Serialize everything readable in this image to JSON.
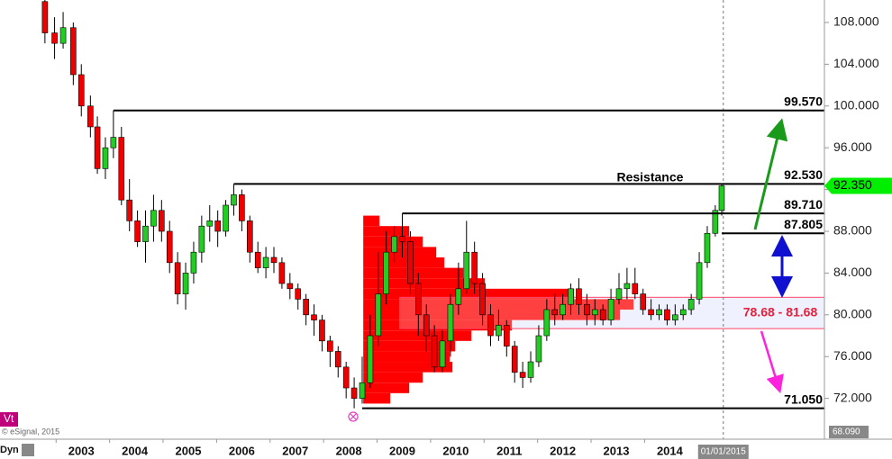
{
  "chart_data": {
    "type": "candlestick",
    "ylim": [
      68.09,
      110.15
    ],
    "yticks": [
      {
        "value": 72,
        "label": "72.000"
      },
      {
        "value": 76,
        "label": "76.000"
      },
      {
        "value": 80,
        "label": "80.000"
      },
      {
        "value": 84,
        "label": "84.000"
      },
      {
        "value": 88,
        "label": "88.000"
      },
      {
        "value": 92,
        "label": "92.000"
      },
      {
        "value": 96,
        "label": "96.000"
      },
      {
        "value": 100,
        "label": "100.000"
      },
      {
        "value": 104,
        "label": "104.000"
      },
      {
        "value": 108,
        "label": "108.000"
      }
    ],
    "xlim": [
      2001.48,
      2016.89
    ],
    "xticks": [
      2003,
      2004,
      2005,
      2006,
      2007,
      2008,
      2009,
      2010,
      2011,
      2012,
      2013,
      2014
    ],
    "up_color": "#22cc22",
    "down_color": "#ee0000",
    "x": [
      2002.32,
      2002.5,
      2002.66,
      2002.85,
      2003.0,
      2003.17,
      2003.3,
      2003.45,
      2003.6,
      2003.75,
      2003.9,
      2004.05,
      2004.2,
      2004.35,
      2004.5,
      2004.65,
      2004.8,
      2004.95,
      2005.1,
      2005.25,
      2005.4,
      2005.55,
      2005.7,
      2005.85,
      2006.0,
      2006.15,
      2006.3,
      2006.45,
      2006.6,
      2006.75,
      2006.9,
      2007.05,
      2007.2,
      2007.35,
      2007.5,
      2007.65,
      2007.8,
      2007.95,
      2008.1,
      2008.25,
      2008.4,
      2008.55,
      2008.7,
      2008.85,
      2009.0,
      2009.15,
      2009.3,
      2009.45,
      2009.6,
      2009.75,
      2009.9,
      2010.05,
      2010.2,
      2010.35,
      2010.5,
      2010.65,
      2010.8,
      2010.95,
      2011.1,
      2011.25,
      2011.4,
      2011.55,
      2011.7,
      2011.85,
      2012.0,
      2012.15,
      2012.3,
      2012.45,
      2012.6,
      2012.75,
      2012.9,
      2013.05,
      2013.2,
      2013.35,
      2013.5,
      2013.65,
      2013.8,
      2013.95,
      2014.1,
      2014.25,
      2014.4,
      2014.55,
      2014.7,
      2014.85,
      2014.97
    ],
    "open": [
      110,
      107,
      106,
      107.5,
      103,
      100,
      98,
      94,
      96,
      97,
      91,
      89,
      87,
      88.5,
      90,
      88,
      85,
      82,
      84,
      86,
      88.5,
      89,
      88,
      90.5,
      91.5,
      89,
      86,
      84.5,
      85.5,
      85,
      83,
      82.5,
      81.5,
      80,
      79.5,
      77.5,
      76.5,
      75,
      73,
      72,
      73.5,
      78,
      82,
      86,
      87.5,
      87,
      83,
      80,
      78,
      75,
      77.5,
      81,
      82.5,
      86,
      83,
      80,
      78,
      79,
      77,
      74.5,
      74,
      75.5,
      78,
      80.5,
      80,
      81,
      82.5,
      81,
      80,
      80.5,
      79.5,
      81.5,
      82.5,
      83,
      82,
      80.5,
      80,
      80.5,
      79.5,
      80,
      80.5,
      81.5,
      85,
      87.805,
      90
    ],
    "high": [
      110.5,
      108.5,
      109,
      108,
      104,
      101,
      99,
      97,
      99.57,
      98,
      93,
      90,
      90,
      91.5,
      91,
      89,
      86,
      85,
      87,
      89.5,
      90.5,
      90,
      91,
      92.53,
      92,
      89.5,
      87,
      86.5,
      86.5,
      85.5,
      84,
      83,
      82,
      81,
      80,
      78,
      77,
      75.5,
      74,
      76,
      80,
      86,
      88,
      88.5,
      89.71,
      88,
      84,
      81,
      79,
      78.5,
      82,
      85,
      89,
      87,
      84,
      81,
      80.5,
      79.5,
      77.5,
      75.5,
      76.5,
      79,
      81.5,
      82,
      82,
      83,
      83.5,
      82,
      81.5,
      81,
      82.5,
      84,
      84.5,
      84.5,
      82.5,
      81.5,
      81,
      81,
      81,
      81,
      82,
      86,
      88.5,
      90.5,
      92.5
    ],
    "low": [
      106,
      104.5,
      105.5,
      102,
      99,
      97,
      93.5,
      93,
      95,
      90.5,
      88,
      86.5,
      85,
      87,
      87,
      84,
      81,
      80.5,
      83,
      85,
      87,
      86.5,
      87.5,
      89.5,
      88,
      85,
      84,
      83.5,
      84,
      82.5,
      81.5,
      80.5,
      79,
      78,
      76.5,
      75,
      74,
      72,
      71.05,
      71.5,
      73,
      77,
      81,
      85,
      85.5,
      82,
      78,
      76.5,
      74.5,
      74.5,
      76,
      80,
      82,
      82,
      79,
      77,
      77.5,
      76,
      73.5,
      73,
      73.5,
      75,
      77.5,
      79,
      79.5,
      80,
      80,
      79,
      79,
      79,
      79,
      81,
      81.5,
      81.5,
      80,
      79.5,
      79.5,
      79,
      79,
      79.5,
      80,
      81,
      84.5,
      87.5,
      89.5
    ],
    "close": [
      107,
      106,
      107.5,
      103,
      100,
      98,
      94,
      96,
      97,
      91,
      89,
      87,
      88.5,
      90,
      88,
      85,
      82,
      84,
      86,
      88.5,
      89,
      88,
      90.5,
      91.5,
      89,
      86,
      84.5,
      85.5,
      85,
      83,
      82.5,
      81.5,
      80,
      79.5,
      77.5,
      76.5,
      75,
      73,
      72,
      73.5,
      78,
      82,
      86,
      87.5,
      87,
      83,
      80,
      78,
      75,
      77.5,
      81,
      82.5,
      86,
      83,
      80,
      78,
      79,
      77,
      74.5,
      74,
      75.5,
      78,
      80.5,
      80,
      81,
      82.5,
      81,
      80,
      80.5,
      79.5,
      81.5,
      82.5,
      83,
      82,
      80.5,
      80,
      80.5,
      79.5,
      80,
      80.5,
      81.5,
      85,
      87.805,
      90,
      92.35
    ],
    "volume_profile": {
      "from": 2008.27,
      "color": "#ff0000",
      "levels": [
        72,
        73,
        74,
        75,
        76,
        77,
        78,
        79,
        80,
        81,
        82,
        83,
        84,
        85,
        86,
        87,
        88,
        89
      ],
      "values": [
        10,
        17,
        22,
        33,
        32,
        34,
        40,
        55,
        95,
        100,
        78,
        45,
        37,
        30,
        27,
        22,
        17,
        6
      ]
    },
    "levels": [
      {
        "value": 99.57,
        "label": "99.570",
        "from": 2003.6
      },
      {
        "value": 92.53,
        "label": "92.530",
        "from": 2005.85
      },
      {
        "value": 89.71,
        "label": "89.710",
        "from": 2009.0
      },
      {
        "value": 87.805,
        "label": "87.805",
        "from": 2014.97
      },
      {
        "value": 71.05,
        "label": "71.050",
        "from": 2008.25
      }
    ],
    "zone": {
      "low": 78.68,
      "high": 81.68,
      "from": 2008.95,
      "label": "78.68 - 81.68"
    },
    "annotation": "Resistance",
    "last_price": {
      "value": 92.35,
      "label": "92.350",
      "color": "#00ee00"
    },
    "cursor": {
      "x": 2015.0,
      "label": "01/01/2015"
    },
    "bottom_readout": "68.090"
  },
  "ui": {
    "study_tag": "Vt",
    "copyright": "© eSignal, 2015",
    "mode": "Dyn"
  }
}
